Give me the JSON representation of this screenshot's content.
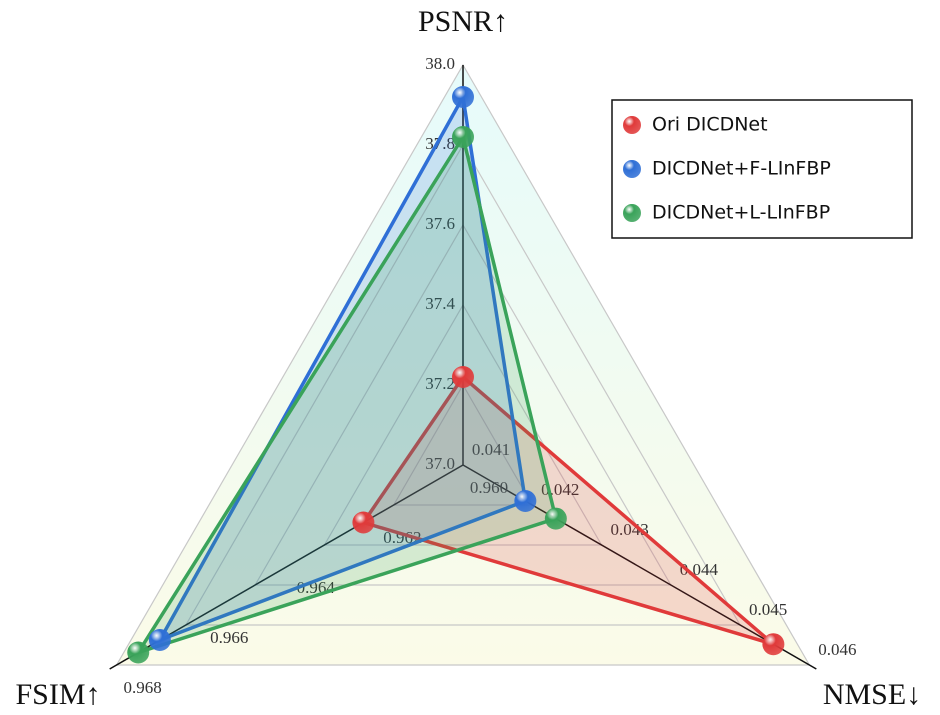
{
  "chart_data": {
    "type": "radar",
    "axes": [
      {
        "name": "PSNR↑",
        "lim": [
          37.0,
          38.0
        ],
        "ticks": [
          {
            "value": 37.0,
            "label": "37.0"
          },
          37.2,
          37.4,
          37.6,
          37.8,
          {
            "value": 38.0,
            "label": "38.0"
          }
        ]
      },
      {
        "name": "NMSE↓",
        "lim": [
          0.041,
          0.046
        ],
        "ticks": [
          0.041,
          0.042,
          0.043,
          0.044,
          0.045,
          0.046
        ]
      },
      {
        "name": "FSIM↑",
        "lim": [
          0.96,
          0.968
        ],
        "ticks": [
          {
            "value": 0.96,
            "label": "0.960"
          },
          0.962,
          0.964,
          0.966,
          0.968
        ]
      }
    ],
    "series": [
      {
        "name": "Ori DICDNet",
        "color": "#e03a3a",
        "values": [
          37.22,
          0.04548,
          0.9623
        ]
      },
      {
        "name": "DICDNet+F-LInFBP",
        "color": "#2f6fd6",
        "values": [
          37.92,
          0.0419,
          0.967
        ]
      },
      {
        "name": "DICDNet+L-LInFBP",
        "color": "#3aa35a",
        "values": [
          37.82,
          0.04234,
          0.9675
        ]
      }
    ],
    "legend": "upper right"
  }
}
